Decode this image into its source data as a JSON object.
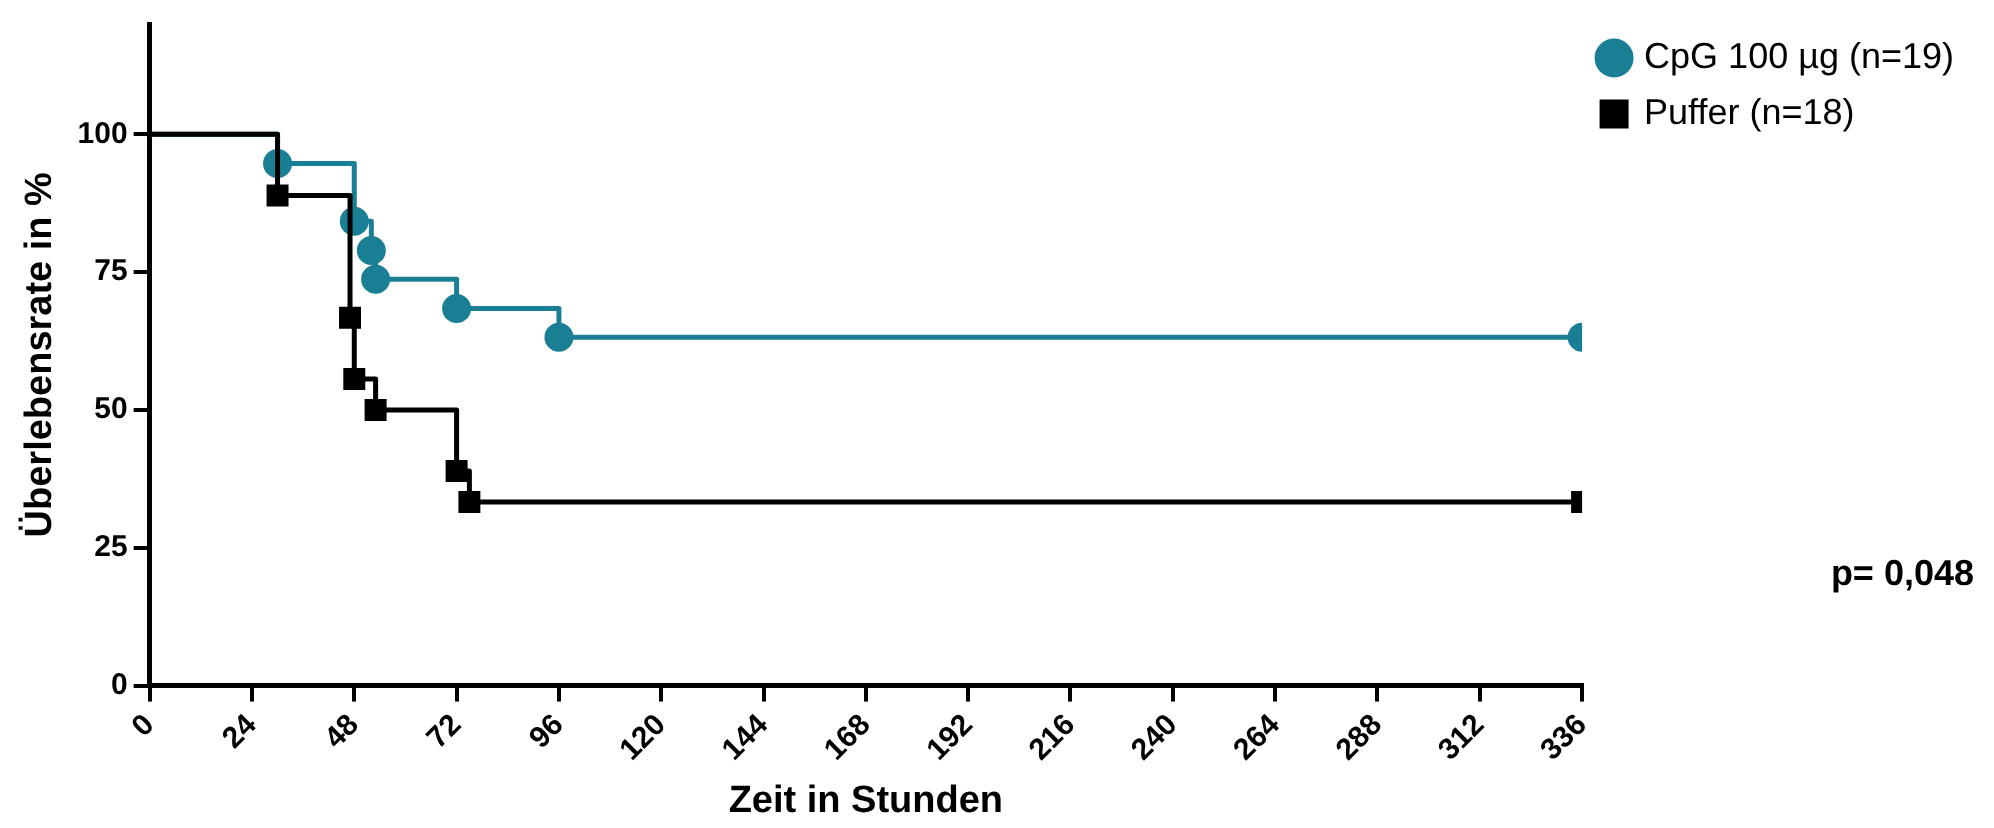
{
  "chart_data": {
    "type": "step",
    "xlabel": "Zeit in Stunden",
    "ylabel": "Überlebensrate in %",
    "xlim": [
      0,
      336
    ],
    "xticks": [
      0,
      24,
      48,
      72,
      96,
      120,
      144,
      168,
      192,
      216,
      240,
      264,
      288,
      312,
      336
    ],
    "ylim": [
      0,
      120
    ],
    "yticks": [
      0,
      25,
      50,
      75,
      100
    ],
    "grid": false,
    "legend": "top right",
    "annotations": [
      "p= 0,048"
    ],
    "series": [
      {
        "name": "CpG 100 µg (n=19)",
        "color": "#1a7f94",
        "marker": "circle",
        "x": [
          0,
          30,
          48,
          52,
          53,
          72,
          96,
          336
        ],
        "values": [
          100,
          94.7,
          84.2,
          78.9,
          73.7,
          68.4,
          63.2,
          63.2
        ]
      },
      {
        "name": "Puffer (n=18)",
        "color": "#000000",
        "marker": "square",
        "x": [
          0,
          30,
          47,
          48,
          53,
          72,
          75,
          336
        ],
        "values": [
          100,
          88.9,
          66.7,
          55.6,
          50,
          38.9,
          33.3,
          33.3
        ]
      }
    ]
  }
}
